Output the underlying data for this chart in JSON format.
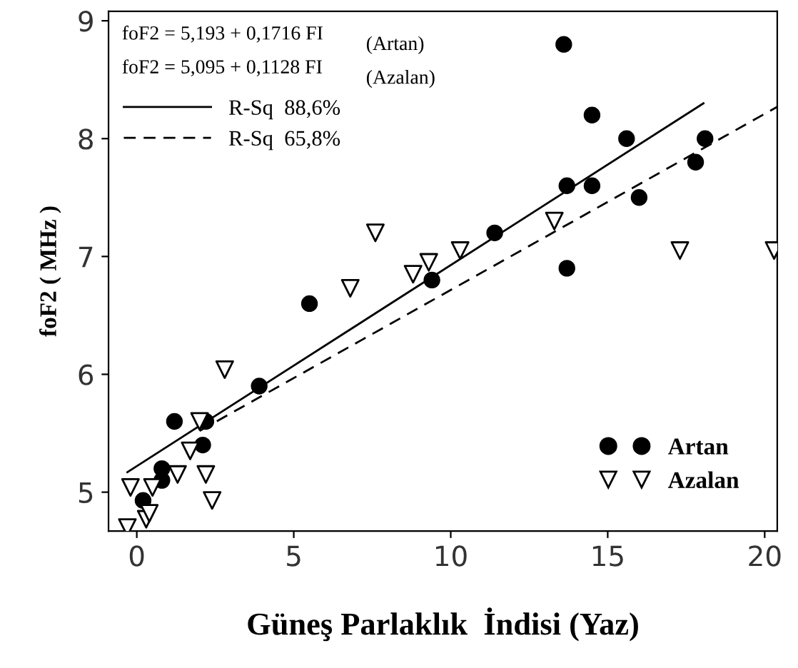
{
  "chart_data": {
    "type": "scatter",
    "xlabel": "Güneş Parlaklık  İndisi (Yaz)",
    "ylabel": "foF2 ( MHz )",
    "xlim": [
      -0.9,
      20.4
    ],
    "ylim": [
      4.67,
      9.08
    ],
    "xticks": [
      0,
      5,
      10,
      15,
      20
    ],
    "yticks": [
      5,
      6,
      7,
      8,
      9
    ],
    "grid": false,
    "legend": "bottom right",
    "annotations": [
      "foF2 = 5,193 + 0,1716 FI",
      "foF2 = 5,095 + 0,1128 FI",
      "(Artan)",
      "(Azalan)"
    ],
    "series": [
      {
        "name": "Artan",
        "marker": "circle",
        "color": "#000000",
        "x": [
          0.2,
          0.8,
          0.8,
          1.2,
          2.1,
          2.2,
          3.9,
          5.5,
          9.4,
          11.4,
          13.6,
          13.7,
          13.7,
          14.5,
          14.5,
          15.6,
          16.0,
          17.8,
          18.1
        ],
        "values": [
          4.93,
          5.2,
          5.1,
          5.6,
          5.4,
          5.6,
          5.9,
          6.6,
          6.8,
          7.2,
          8.8,
          6.9,
          7.6,
          8.2,
          7.6,
          8.0,
          7.5,
          7.8,
          8.0
        ]
      },
      {
        "name": "Azalan",
        "marker": "triangle",
        "color": "#000000",
        "x": [
          -0.3,
          -0.2,
          0.3,
          0.4,
          0.5,
          1.3,
          1.7,
          2.0,
          2.2,
          2.4,
          2.8,
          6.8,
          7.6,
          8.8,
          9.3,
          10.3,
          13.3,
          17.3,
          20.3
        ],
        "values": [
          4.7,
          5.04,
          4.77,
          4.82,
          5.04,
          5.15,
          5.35,
          5.6,
          5.15,
          4.93,
          6.04,
          6.73,
          7.2,
          6.85,
          6.95,
          7.05,
          7.3,
          7.05,
          7.05
        ]
      },
      {
        "name": "R-Sq  88,6%",
        "type": "line",
        "line_style": "solid",
        "color": "#000000",
        "x": [
          -0.3,
          18.05
        ],
        "values": [
          5.17,
          8.3
        ]
      },
      {
        "name": "R-Sq  65,8%",
        "type": "line",
        "line_style": "dashed",
        "color": "#000000",
        "x": [
          2.0,
          20.4
        ],
        "values": [
          5.52,
          8.27
        ]
      }
    ]
  }
}
